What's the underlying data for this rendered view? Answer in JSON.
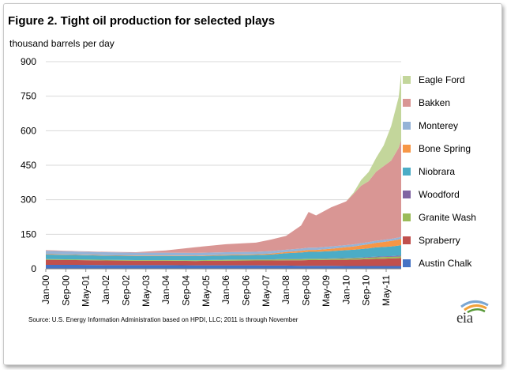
{
  "title": "Figure 2.  Tight oil production for selected plays",
  "source": "Source:  U.S. Energy Information Administration based on HPDI, LLC; 2011 is through November",
  "logo_text": "eia",
  "chart_data": {
    "type": "area",
    "stacked": true,
    "ylabel": "thousand barrels per day",
    "ylim": [
      0,
      900
    ],
    "yticks": [
      0,
      150,
      300,
      450,
      600,
      750,
      900
    ],
    "xlim": [
      2000.0,
      2011.833
    ],
    "xticks": [
      {
        "label": "Jan-00",
        "x": 2000.0
      },
      {
        "label": "Sep-00",
        "x": 2000.667
      },
      {
        "label": "May-01",
        "x": 2001.333
      },
      {
        "label": "Jan-02",
        "x": 2002.0
      },
      {
        "label": "Sep-02",
        "x": 2002.667
      },
      {
        "label": "May-03",
        "x": 2003.333
      },
      {
        "label": "Jan-04",
        "x": 2004.0
      },
      {
        "label": "Sep-04",
        "x": 2004.667
      },
      {
        "label": "May-05",
        "x": 2005.333
      },
      {
        "label": "Jan-06",
        "x": 2006.0
      },
      {
        "label": "Sep-06",
        "x": 2006.667
      },
      {
        "label": "May-07",
        "x": 2007.333
      },
      {
        "label": "Jan-08",
        "x": 2008.0
      },
      {
        "label": "Sep-08",
        "x": 2008.667
      },
      {
        "label": "May-09",
        "x": 2009.333
      },
      {
        "label": "Jan-10",
        "x": 2010.0
      },
      {
        "label": "Sep-10",
        "x": 2010.667
      },
      {
        "label": "May-11",
        "x": 2011.333
      }
    ],
    "x": [
      2000.0,
      2001.0,
      2002.0,
      2003.0,
      2004.0,
      2005.0,
      2006.0,
      2007.0,
      2007.5,
      2008.0,
      2008.5,
      2008.75,
      2009.0,
      2009.5,
      2010.0,
      2010.25,
      2010.5,
      2010.75,
      2011.0,
      2011.25,
      2011.5,
      2011.75,
      2011.833
    ],
    "series": [
      {
        "name": "Austin Chalk",
        "color": "#4472c4",
        "values": [
          17,
          17,
          16,
          16,
          16,
          15,
          15,
          15,
          14,
          14,
          13,
          13,
          13,
          13,
          12,
          12,
          12,
          12,
          12,
          12,
          12,
          12,
          12
        ]
      },
      {
        "name": "Spraberry",
        "color": "#c0504d",
        "values": [
          22,
          21,
          20,
          19,
          19,
          19,
          20,
          21,
          22,
          23,
          24,
          25,
          25,
          26,
          27,
          28,
          29,
          30,
          31,
          32,
          33,
          34,
          35
        ]
      },
      {
        "name": "Granite Wash",
        "color": "#9bbb59",
        "values": [
          3,
          3,
          3,
          3,
          3,
          3,
          4,
          4,
          4,
          5,
          5,
          5,
          5,
          5,
          6,
          6,
          6,
          6,
          7,
          7,
          7,
          7,
          7
        ]
      },
      {
        "name": "Woodford",
        "color": "#8064a2",
        "values": [
          0,
          0,
          0,
          0,
          0,
          0,
          1,
          1,
          1,
          1,
          1,
          1,
          1,
          1,
          2,
          2,
          2,
          3,
          3,
          3,
          3,
          4,
          4
        ]
      },
      {
        "name": "Niobrara",
        "color": "#4bacc6",
        "values": [
          20,
          19,
          18,
          18,
          18,
          18,
          18,
          19,
          21,
          25,
          28,
          30,
          30,
          32,
          34,
          35,
          37,
          38,
          40,
          41,
          42,
          44,
          45
        ]
      },
      {
        "name": "Bone Spring",
        "color": "#f79646",
        "values": [
          2,
          2,
          2,
          2,
          2,
          2,
          3,
          3,
          4,
          5,
          7,
          8,
          8,
          10,
          13,
          14,
          16,
          18,
          20,
          22,
          24,
          26,
          27
        ]
      },
      {
        "name": "Monterey",
        "color": "#95b3d7",
        "values": [
          14,
          13,
          13,
          12,
          12,
          12,
          11,
          11,
          11,
          10,
          10,
          10,
          10,
          10,
          9,
          9,
          9,
          9,
          9,
          9,
          9,
          9,
          9
        ]
      },
      {
        "name": "Bakken",
        "color": "#d99694",
        "values": [
          3,
          2,
          2,
          2,
          10,
          25,
          35,
          40,
          50,
          60,
          100,
          155,
          140,
          170,
          190,
          220,
          250,
          265,
          300,
          320,
          340,
          390,
          420
        ]
      },
      {
        "name": "Eagle Ford",
        "color": "#c3d69b",
        "values": [
          0,
          0,
          0,
          0,
          0,
          0,
          0,
          0,
          0,
          0,
          0,
          0,
          0,
          0,
          0,
          5,
          25,
          40,
          60,
          90,
          150,
          220,
          290
        ]
      }
    ]
  }
}
